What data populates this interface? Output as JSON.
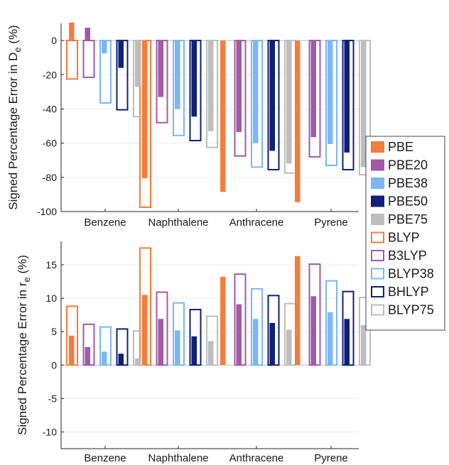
{
  "colors": {
    "PBE": "#f47c3c",
    "PBE20": "#a259a8",
    "PBE38": "#7ab8ef",
    "PBE50": "#0f1f7a",
    "PBE75": "#bdbdbd"
  },
  "legend": {
    "placement": "right",
    "entries": [
      {
        "name": "PBE",
        "color": "#f47c3c",
        "style": "filled"
      },
      {
        "name": "PBE20",
        "color": "#a259a8",
        "style": "filled"
      },
      {
        "name": "PBE38",
        "color": "#7ab8ef",
        "style": "filled"
      },
      {
        "name": "PBE50",
        "color": "#0f1f7a",
        "style": "filled"
      },
      {
        "name": "PBE75",
        "color": "#bdbdbd",
        "style": "filled"
      },
      {
        "name": "BLYP",
        "color": "#f47c3c",
        "style": "outline"
      },
      {
        "name": "B3LYP",
        "color": "#a259a8",
        "style": "outline"
      },
      {
        "name": "BLYP38",
        "color": "#7ab8ef",
        "style": "outline"
      },
      {
        "name": "BHLYP",
        "color": "#0f1f7a",
        "style": "outline"
      },
      {
        "name": "BLYP75",
        "color": "#bdbdbd",
        "style": "outline"
      }
    ]
  },
  "chart_data": [
    {
      "type": "bar",
      "ylabel": "Signed Percentage Error in D",
      "ylabel_sub": "e",
      "ylabel_unit": " (%)",
      "categories": [
        "Benzene",
        "Naphthalene",
        "Anthracene",
        "Pyrene"
      ],
      "ylim": [
        -100,
        10
      ],
      "yticks": [
        0,
        -20,
        -40,
        -60,
        -80,
        -100
      ],
      "grid": true,
      "filled_series": [
        {
          "name": "PBE",
          "values": [
            10.5,
            -80.5,
            -88.5,
            -94.5
          ]
        },
        {
          "name": "PBE20",
          "values": [
            7.5,
            -33,
            -53.5,
            -56.5
          ]
        },
        {
          "name": "PBE38",
          "values": [
            -7.5,
            -40,
            -60,
            -60.5
          ]
        },
        {
          "name": "PBE50",
          "values": [
            -16,
            -44.5,
            -64.5,
            -65.5
          ]
        },
        {
          "name": "PBE75",
          "values": [
            -27,
            -53,
            -72,
            -74
          ]
        }
      ],
      "outline_series": [
        {
          "name": "BLYP",
          "values": [
            -22.5,
            -97.5,
            null,
            null
          ]
        },
        {
          "name": "B3LYP",
          "values": [
            -21.5,
            -48,
            -67.5,
            -68
          ]
        },
        {
          "name": "BLYP38",
          "values": [
            -36.5,
            -55.5,
            -74,
            -73
          ]
        },
        {
          "name": "BHLYP",
          "values": [
            -40.5,
            -58.5,
            -75.5,
            -75.5
          ]
        },
        {
          "name": "BLYP75",
          "values": [
            -44.5,
            -62.5,
            -77.5,
            -78.5
          ]
        }
      ]
    },
    {
      "type": "bar",
      "ylabel": "Signed Percentage Error in r",
      "ylabel_sub": "e",
      "ylabel_unit": " (%)",
      "categories": [
        "Benzene",
        "Naphthalene",
        "Anthracene",
        "Pyrene"
      ],
      "ylim": [
        -12.5,
        18.5
      ],
      "yticks": [
        15,
        10,
        5,
        0,
        -5,
        -10
      ],
      "grid": true,
      "filled_series": [
        {
          "name": "PBE",
          "values": [
            4.4,
            10.5,
            13.2,
            16.3
          ]
        },
        {
          "name": "PBE20",
          "values": [
            2.7,
            6.9,
            9.1,
            10.3
          ]
        },
        {
          "name": "PBE38",
          "values": [
            2.0,
            5.2,
            6.9,
            7.9
          ]
        },
        {
          "name": "PBE50",
          "values": [
            1.7,
            4.3,
            6.3,
            6.9
          ]
        },
        {
          "name": "PBE75",
          "values": [
            1.0,
            3.6,
            5.3,
            6.0
          ]
        }
      ],
      "outline_series": [
        {
          "name": "BLYP",
          "values": [
            8.8,
            17.5,
            null,
            null
          ]
        },
        {
          "name": "B3LYP",
          "values": [
            6.1,
            10.9,
            13.6,
            15.1
          ]
        },
        {
          "name": "BLYP38",
          "values": [
            5.7,
            9.3,
            11.4,
            12.6
          ]
        },
        {
          "name": "BHLYP",
          "values": [
            5.4,
            8.3,
            10.4,
            11.0
          ]
        },
        {
          "name": "BLYP75",
          "values": [
            5.1,
            7.3,
            9.2,
            10.1
          ]
        }
      ]
    }
  ]
}
